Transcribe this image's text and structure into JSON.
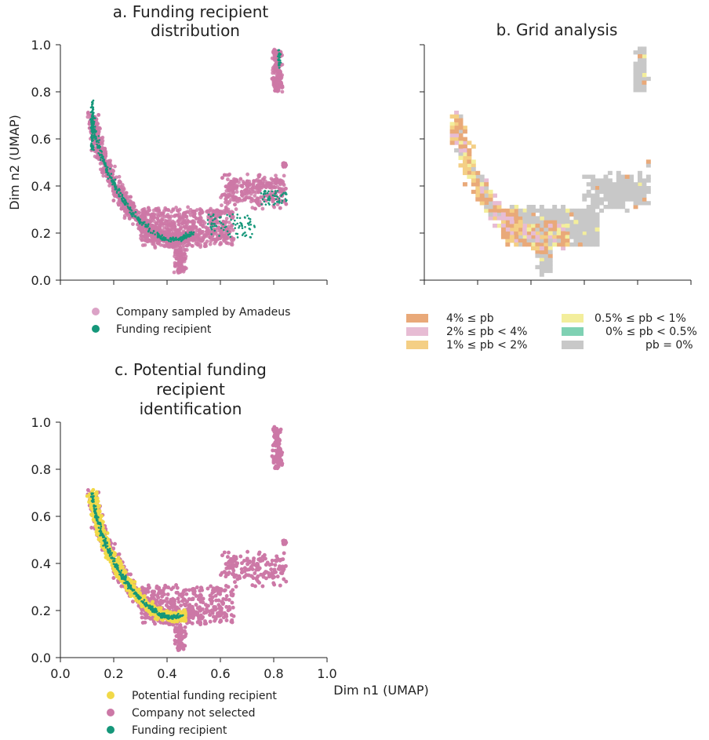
{
  "figure": {
    "panel_a": {
      "title_lines": [
        "a. Funding recipient",
        "distribution"
      ],
      "legend": [
        {
          "label": "Company sampled by Amadeus",
          "color": "#dba2c6"
        },
        {
          "label": "Funding recipient",
          "color": "#15977a"
        }
      ]
    },
    "panel_b": {
      "title_lines": [
        "b. Grid analysis"
      ],
      "legend": [
        {
          "label": "4% ≤ pb",
          "color": "#e9a979"
        },
        {
          "label": "2% ≤ pb < 4%",
          "color": "#e7bcd4"
        },
        {
          "label": "1% ≤ pb < 2%",
          "color": "#f4cf85"
        },
        {
          "label": "0.5% ≤ pb < 1%",
          "color": "#f3ee9c"
        },
        {
          "label": "0% ≤ pb < 0.5%",
          "color": "#7fd1b3"
        },
        {
          "label": "pb = 0%",
          "color": "#c8c8c8"
        }
      ]
    },
    "panel_c": {
      "title_lines": [
        "c. Potential funding",
        "recipient",
        "identification"
      ],
      "legend": [
        {
          "label": "Potential funding recipient",
          "color": "#f1d948"
        },
        {
          "label": "Company not selected",
          "color": "#cc78a6"
        },
        {
          "label": "Funding recipient",
          "color": "#15977a"
        }
      ]
    },
    "colors": {
      "company": "#cc78a6",
      "recipient": "#15977a",
      "potential": "#f1d948",
      "grid_zero": "#c8c8c8"
    }
  },
  "chart_data": [
    {
      "type": "scatter",
      "panel": "a",
      "title": "a. Funding recipient distribution",
      "xlabel": "",
      "ylabel": "Dim n2 (UMAP)",
      "xlim": [
        0,
        1
      ],
      "ylim": [
        0,
        1
      ],
      "y_ticks": [
        "0.0",
        "0.2",
        "0.4",
        "0.6",
        "0.8",
        "1.0"
      ],
      "series": [
        {
          "name": "Company sampled by Amadeus",
          "x": [
            0.13,
            0.16,
            0.19,
            0.22,
            0.25,
            0.28,
            0.31,
            0.35,
            0.4,
            0.45,
            0.5,
            0.55,
            0.6,
            0.65,
            0.7,
            0.74,
            0.78,
            0.8,
            0.83,
            0.82,
            0.84,
            0.52,
            0.47,
            0.42,
            0.38,
            0.53
          ],
          "y": [
            0.65,
            0.55,
            0.45,
            0.38,
            0.32,
            0.28,
            0.24,
            0.2,
            0.17,
            0.22,
            0.25,
            0.27,
            0.22,
            0.3,
            0.4,
            0.38,
            0.37,
            0.85,
            0.95,
            0.49,
            0.35,
            0.1,
            0.12,
            0.15,
            0.28,
            0.02
          ]
        },
        {
          "name": "Funding recipient",
          "x": [
            0.12,
            0.13,
            0.14,
            0.15,
            0.17,
            0.19,
            0.21,
            0.24,
            0.27,
            0.31,
            0.35,
            0.4,
            0.45,
            0.5,
            0.55,
            0.62,
            0.66,
            0.8,
            0.82,
            0.84
          ],
          "y": [
            0.7,
            0.62,
            0.55,
            0.5,
            0.45,
            0.4,
            0.34,
            0.29,
            0.24,
            0.19,
            0.15,
            0.13,
            0.13,
            0.14,
            0.27,
            0.22,
            0.2,
            0.36,
            0.35,
            0.94
          ]
        }
      ]
    },
    {
      "type": "heatmap",
      "panel": "b",
      "title": "b. Grid analysis",
      "xlim": [
        0,
        1
      ],
      "ylim": [
        0,
        1
      ],
      "categories": [
        "4% ≤ pb",
        "2% ≤ pb < 4%",
        "1% ≤ pb < 2%",
        "0.5% ≤ pb < 1%",
        "0% ≤ pb < 0.5%",
        "pb = 0%"
      ]
    },
    {
      "type": "scatter",
      "panel": "c",
      "title": "c. Potential funding recipient identification",
      "xlabel": "Dim n1 (UMAP)",
      "ylabel": "",
      "xlim": [
        0,
        1
      ],
      "ylim": [
        0,
        1
      ],
      "x_ticks": [
        "0.0",
        "0.2",
        "0.4",
        "0.6",
        "0.8",
        "1.0"
      ],
      "y_ticks": [
        "0.0",
        "0.2",
        "0.4",
        "0.6",
        "0.8",
        "1.0"
      ],
      "series": [
        {
          "name": "Potential funding recipient",
          "x": [
            0.12,
            0.14,
            0.16,
            0.18,
            0.2,
            0.23,
            0.26,
            0.3,
            0.34,
            0.38,
            0.42,
            0.45
          ],
          "y": [
            0.66,
            0.58,
            0.5,
            0.44,
            0.38,
            0.31,
            0.25,
            0.19,
            0.15,
            0.13,
            0.12,
            0.12
          ]
        },
        {
          "name": "Company not selected",
          "x": [
            0.22,
            0.28,
            0.35,
            0.45,
            0.55,
            0.65,
            0.72,
            0.8,
            0.83,
            0.84,
            0.55
          ],
          "y": [
            0.36,
            0.3,
            0.26,
            0.2,
            0.25,
            0.27,
            0.4,
            0.85,
            0.95,
            0.5,
            0.03
          ]
        },
        {
          "name": "Funding recipient",
          "x": [
            0.12,
            0.14,
            0.16,
            0.19,
            0.22,
            0.26,
            0.3,
            0.35,
            0.4,
            0.44
          ],
          "y": [
            0.7,
            0.6,
            0.5,
            0.42,
            0.34,
            0.26,
            0.19,
            0.15,
            0.13,
            0.12
          ]
        }
      ]
    }
  ]
}
